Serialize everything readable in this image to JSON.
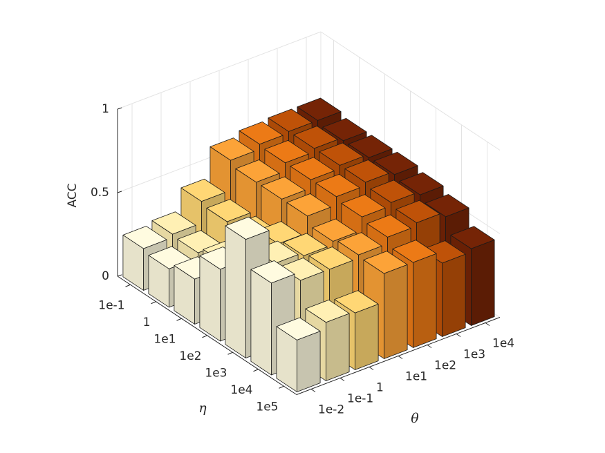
{
  "chart_data": {
    "type": "bar3d",
    "zlabel": "ACC",
    "xlabel": "θ",
    "ylabel": "η",
    "x_categories": [
      "1e-2",
      "1e-1",
      "1",
      "1e1",
      "1e2",
      "1e3",
      "1e4"
    ],
    "y_categories": [
      "1e-1",
      "1",
      "1e1",
      "1e2",
      "1e3",
      "1e4",
      "1e5"
    ],
    "series": [
      {
        "color": "#fffbe0",
        "values": [
          0.25,
          0.23,
          0.27,
          0.43,
          0.71,
          0.55,
          0.31
        ]
      },
      {
        "color": "#fff0b4",
        "values": [
          0.27,
          0.26,
          0.3,
          0.33,
          0.5,
          0.5,
          0.35
        ]
      },
      {
        "color": "#ffd775",
        "values": [
          0.4,
          0.38,
          0.38,
          0.45,
          0.48,
          0.5,
          0.34
        ]
      },
      {
        "color": "#fca338",
        "values": [
          0.58,
          0.55,
          0.55,
          0.55,
          0.5,
          0.52,
          0.51
        ]
      },
      {
        "color": "#ec7a16",
        "values": [
          0.61,
          0.6,
          0.6,
          0.6,
          0.58,
          0.56,
          0.51
        ]
      },
      {
        "color": "#bf5208",
        "values": [
          0.62,
          0.62,
          0.62,
          0.62,
          0.6,
          0.58,
          0.44
        ]
      },
      {
        "color": "#752406",
        "values": [
          0.62,
          0.6,
          0.6,
          0.6,
          0.58,
          0.55,
          0.46
        ]
      }
    ],
    "zlim": [
      0,
      1
    ],
    "zticks": [
      0,
      0.5,
      1
    ],
    "grid": true
  }
}
